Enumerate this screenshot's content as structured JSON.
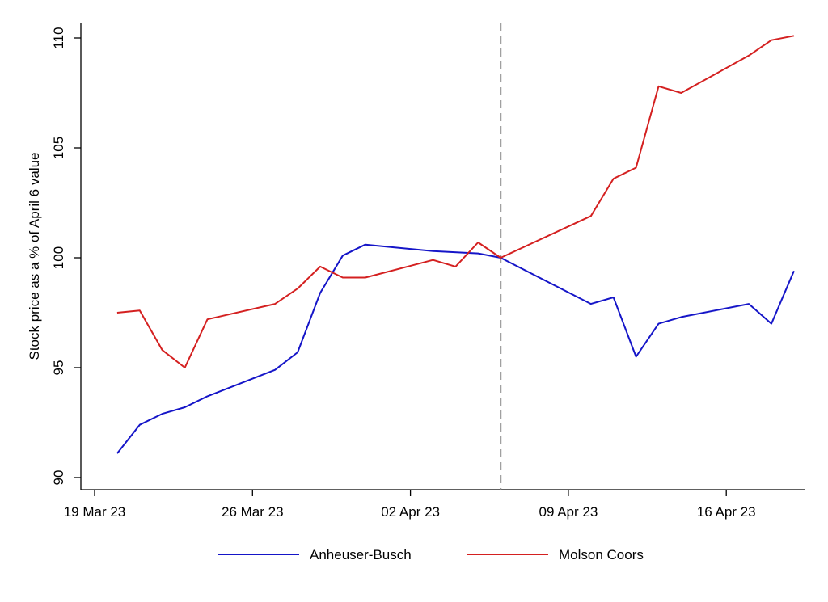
{
  "chart_data": {
    "type": "line",
    "title": "",
    "xlabel": "",
    "ylabel": "Stock price as a % of April 6 value",
    "x_ticks": [
      "19 Mar 23",
      "26 Mar 23",
      "02 Apr 23",
      "09 Apr 23",
      "16 Apr 23"
    ],
    "y_ticks": [
      90,
      95,
      100,
      105,
      110
    ],
    "ylim": [
      89.5,
      111
    ],
    "xlim": [
      "2023-03-19",
      "2023-04-20"
    ],
    "reference_line": {
      "x": "2023-04-06",
      "style": "dashed",
      "color": "#888888"
    },
    "legend_position": "bottom",
    "grid": false,
    "series": [
      {
        "name": "Anheuser-Busch",
        "color": "#1515c8",
        "points": [
          [
            "2023-03-20",
            91.1
          ],
          [
            "2023-03-21",
            92.4
          ],
          [
            "2023-03-22",
            92.9
          ],
          [
            "2023-03-23",
            93.2
          ],
          [
            "2023-03-24",
            93.7
          ],
          [
            "2023-03-27",
            94.9
          ],
          [
            "2023-03-28",
            95.7
          ],
          [
            "2023-03-29",
            98.4
          ],
          [
            "2023-03-30",
            100.1
          ],
          [
            "2023-03-31",
            100.6
          ],
          [
            "2023-04-03",
            100.3
          ],
          [
            "2023-04-05",
            100.2
          ],
          [
            "2023-04-06",
            100.0
          ],
          [
            "2023-04-10",
            97.9
          ],
          [
            "2023-04-11",
            98.2
          ],
          [
            "2023-04-12",
            95.5
          ],
          [
            "2023-04-13",
            97.0
          ],
          [
            "2023-04-14",
            97.3
          ],
          [
            "2023-04-17",
            97.9
          ],
          [
            "2023-04-18",
            97.0
          ],
          [
            "2023-04-19",
            99.4
          ]
        ]
      },
      {
        "name": "Molson Coors",
        "color": "#d42020",
        "points": [
          [
            "2023-03-20",
            97.5
          ],
          [
            "2023-03-21",
            97.6
          ],
          [
            "2023-03-22",
            95.8
          ],
          [
            "2023-03-23",
            95.0
          ],
          [
            "2023-03-24",
            97.2
          ],
          [
            "2023-03-27",
            97.9
          ],
          [
            "2023-03-28",
            98.6
          ],
          [
            "2023-03-29",
            99.6
          ],
          [
            "2023-03-30",
            99.1
          ],
          [
            "2023-03-31",
            99.1
          ],
          [
            "2023-04-03",
            99.9
          ],
          [
            "2023-04-04",
            99.6
          ],
          [
            "2023-04-05",
            100.7
          ],
          [
            "2023-04-06",
            100.0
          ],
          [
            "2023-04-10",
            101.9
          ],
          [
            "2023-04-11",
            103.6
          ],
          [
            "2023-04-12",
            104.1
          ],
          [
            "2023-04-13",
            107.8
          ],
          [
            "2023-04-14",
            107.5
          ],
          [
            "2023-04-17",
            109.2
          ],
          [
            "2023-04-18",
            109.9
          ],
          [
            "2023-04-19",
            110.1
          ]
        ]
      }
    ]
  }
}
